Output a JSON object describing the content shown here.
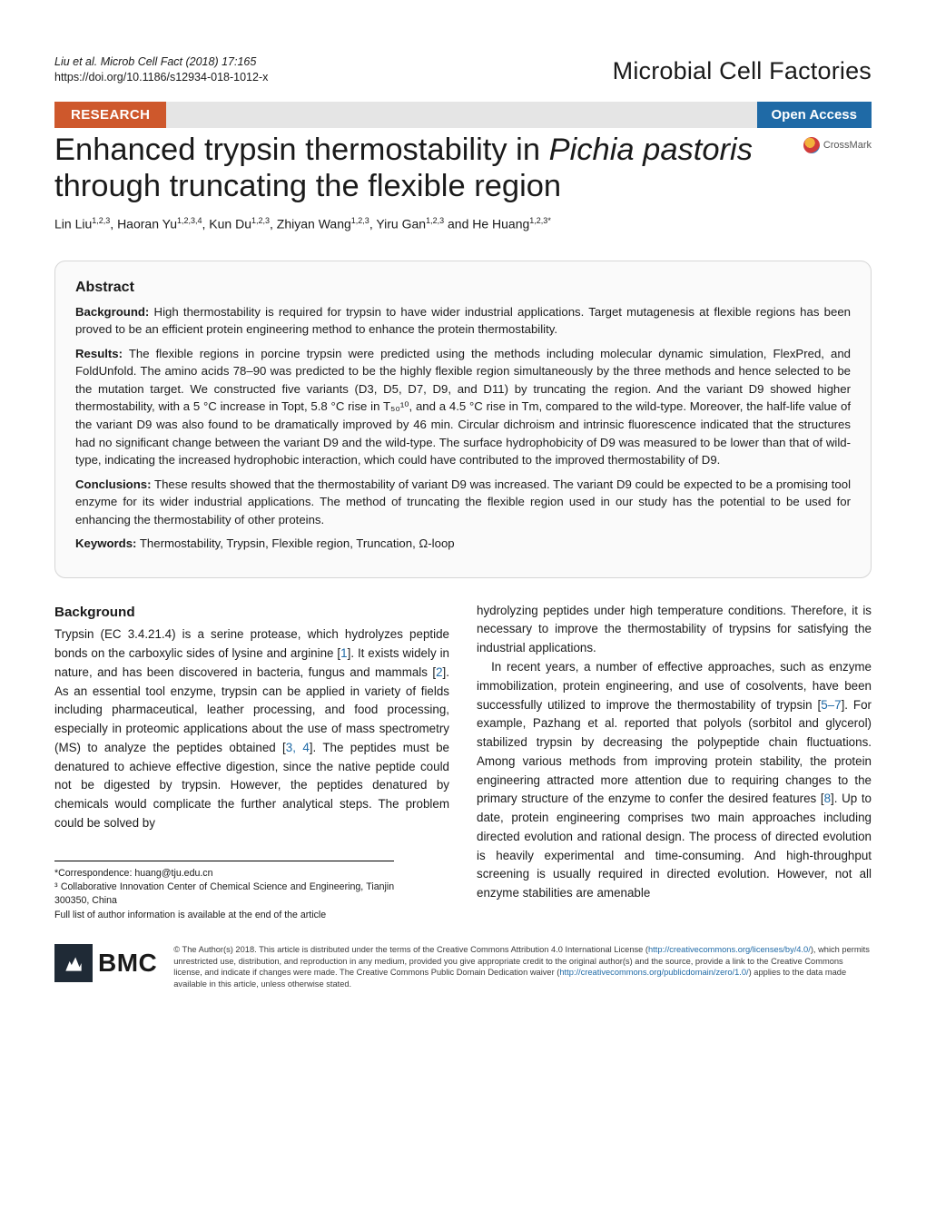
{
  "header": {
    "citation_line1": "Liu et al. Microb Cell Fact    (2018) 17:165",
    "citation_line2": "https://doi.org/10.1186/s12934-018-1012-x",
    "journal_name": "Microbial Cell Factories"
  },
  "bars": {
    "research": "RESEARCH",
    "open_access": "Open Access",
    "crossmark": "CrossMark"
  },
  "title": {
    "part1": "Enhanced trypsin thermostability in ",
    "italic1": "Pichia pastoris",
    "part2": " through truncating the flexible region"
  },
  "authors_html": "Lin Liu<sup>1,2,3</sup>, Haoran Yu<sup>1,2,3,4</sup>, Kun Du<sup>1,2,3</sup>, Zhiyan Wang<sup>1,2,3</sup>, Yiru Gan<sup>1,2,3</sup> and He Huang<sup>1,2,3*</sup>",
  "abstract": {
    "heading": "Abstract",
    "background_label": "Background:",
    "background_text": " High thermostability is required for trypsin to have wider industrial applications. Target mutagenesis at flexible regions has been proved to be an efficient protein engineering method to enhance the protein thermostability.",
    "results_label": "Results:",
    "results_text": " The flexible regions in porcine trypsin were predicted using the methods including molecular dynamic simulation, FlexPred, and FoldUnfold. The amino acids 78–90 was predicted to be the highly flexible region simultaneously by the three methods and hence selected to be the mutation target. We constructed five variants (D3, D5, D7, D9, and D11) by truncating the region. And the variant D9 showed higher thermostability, with a 5 °C increase in Topt, 5.8 °C rise in T₅₀¹⁰, and a 4.5 °C rise in Tm, compared to the wild-type. Moreover, the half-life value of the variant D9 was also found to be dramatically improved by 46 min. Circular dichroism and intrinsic fluorescence indicated that the structures had no significant change between the variant D9 and the wild-type. The surface hydrophobicity of D9 was measured to be lower than that of wild-type, indicating the increased hydrophobic interaction, which could have contributed to the improved thermostability of D9.",
    "conclusions_label": "Conclusions:",
    "conclusions_text": " These results showed that the thermostability of variant D9 was increased. The variant D9 could be expected to be a promising tool enzyme for its wider industrial applications. The method of truncating the flexible region used in our study has the potential to be used for enhancing the thermostability of other proteins.",
    "keywords_label": "Keywords:",
    "keywords_text": " Thermostability, Trypsin, Flexible region, Truncation, Ω-loop"
  },
  "body": {
    "bg_heading": "Background",
    "col1_p1": "Trypsin (EC 3.4.21.4) is a serine protease, which hydrolyzes peptide bonds on the carboxylic sides of lysine and arginine [1]. It exists widely in nature, and has been discovered in bacteria, fungus and mammals [2]. As an essential tool enzyme, trypsin can be applied in variety of fields including pharmaceutical, leather processing, and food processing, especially in proteomic applications about the use of mass spectrometry (MS) to analyze the peptides obtained [3, 4]. The peptides must be denatured to achieve effective digestion, since the native peptide could not be digested by trypsin. However, the peptides denatured by chemicals would complicate the further analytical steps. The problem could be solved by",
    "col2_p1": "hydrolyzing peptides under high temperature conditions. Therefore, it is necessary to improve the thermostability of trypsins for satisfying the industrial applications.",
    "col2_p2": "In recent years, a number of effective approaches, such as enzyme immobilization, protein engineering, and use of cosolvents, have been successfully utilized to improve the thermostability of trypsin [5–7]. For example, Pazhang et al. reported that polyols (sorbitol and glycerol) stabilized trypsin by decreasing the polypeptide chain fluctuations. Among various methods from improving protein stability, the protein engineering attracted more attention due to requiring changes to the primary structure of the enzyme to confer the desired features [8]. Up to date, protein engineering comprises two main approaches including directed evolution and rational design. The process of directed evolution is heavily experimental and time-consuming. And high-throughput screening is usually required in directed evolution. However, not all enzyme stabilities are amenable"
  },
  "affil": {
    "correspondence": "*Correspondence:  huang@tju.edu.cn",
    "line2": "³ Collaborative Innovation Center of Chemical Science and Engineering, Tianjin 300350, China",
    "line3": "Full list of author information is available at the end of the article"
  },
  "footer": {
    "bmc": "BMC",
    "license": "© The Author(s) 2018. This article is distributed under the terms of the Creative Commons Attribution 4.0 International License (http://creativecommons.org/licenses/by/4.0/), which permits unrestricted use, distribution, and reproduction in any medium, provided you give appropriate credit to the original author(s) and the source, provide a link to the Creative Commons license, and indicate if changes were made. The Creative Commons Public Domain Dedication waiver (http://creativecommons.org/publicdomain/zero/1.0/) applies to the data made available in this article, unless otherwise stated."
  },
  "colors": {
    "research_bar": "#ce582c",
    "open_access_bar": "#1f6aa6",
    "link": "#1f6aa6",
    "abstract_bg": "#fafafa",
    "abstract_border": "#d6d6d6",
    "bmc_square": "#1f2a36"
  }
}
